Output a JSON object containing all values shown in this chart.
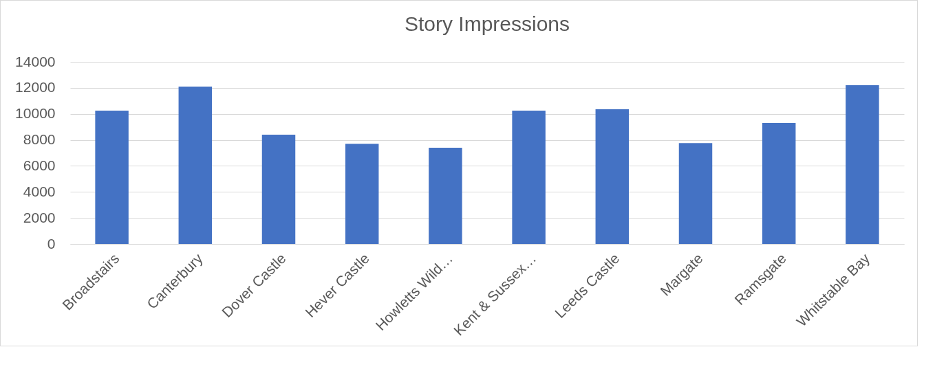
{
  "chart_data": {
    "type": "bar",
    "title": "Story Impressions",
    "categories": [
      "Broadstairs",
      "Canterbury",
      "Dover Castle",
      "Hever Castle",
      "Howletts Wild…",
      "Kent & Sussex…",
      "Leeds Castle",
      "Margate",
      "Ramsgate",
      "Whitstable Bay"
    ],
    "values": [
      10250,
      12100,
      8400,
      7700,
      7400,
      10250,
      10350,
      7750,
      9300,
      12200
    ],
    "color": "#4472c4",
    "ylim": [
      0,
      14000
    ],
    "yticks": [
      0,
      2000,
      4000,
      6000,
      8000,
      10000,
      12000,
      14000
    ],
    "grid": "y"
  }
}
